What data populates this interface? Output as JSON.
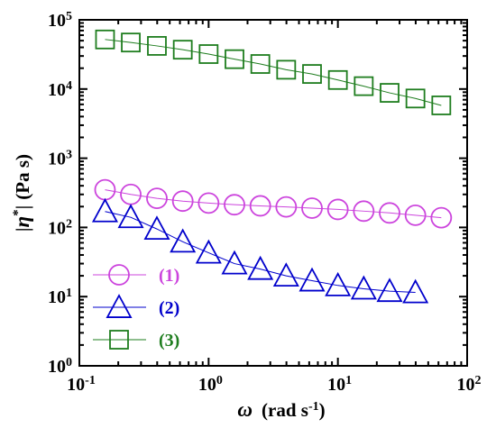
{
  "chart_data": {
    "type": "scatter",
    "x_scale": "log",
    "y_scale": "log",
    "xlim": [
      0.1,
      100
    ],
    "ylim": [
      1,
      100000
    ],
    "grid": false,
    "legend_position": "bottom-left",
    "xlabel": {
      "symbol": "ω",
      "text": "(rad s",
      "sup": "-1",
      "close": ")"
    },
    "ylabel": {
      "open": "|",
      "symbol": "η",
      "sup": "*",
      "close": "|",
      "text": "(Pa s)"
    },
    "x_ticks": [
      {
        "base": "10",
        "exp": "-1",
        "value": 0.1
      },
      {
        "base": "10",
        "exp": "0",
        "value": 1
      },
      {
        "base": "10",
        "exp": "1",
        "value": 10
      },
      {
        "base": "10",
        "exp": "2",
        "value": 100
      }
    ],
    "y_ticks": [
      {
        "base": "10",
        "exp": "0",
        "value": 1
      },
      {
        "base": "10",
        "exp": "1",
        "value": 10
      },
      {
        "base": "10",
        "exp": "2",
        "value": 100
      },
      {
        "base": "10",
        "exp": "3",
        "value": 1000
      },
      {
        "base": "10",
        "exp": "4",
        "value": 10000
      },
      {
        "base": "10",
        "exp": "5",
        "value": 100000
      }
    ],
    "series": [
      {
        "name": "(1)",
        "marker": "circle",
        "color": "#cc44dd",
        "points": [
          [
            0.158,
            350
          ],
          [
            0.25,
            300
          ],
          [
            0.398,
            263
          ],
          [
            0.631,
            240
          ],
          [
            1.0,
            225
          ],
          [
            1.585,
            213
          ],
          [
            2.512,
            205
          ],
          [
            3.981,
            198
          ],
          [
            6.31,
            190
          ],
          [
            10.0,
            182
          ],
          [
            15.85,
            172
          ],
          [
            25.12,
            162
          ],
          [
            39.81,
            150
          ],
          [
            63.1,
            138
          ]
        ]
      },
      {
        "name": "(2)",
        "marker": "triangle",
        "color": "#0000cc",
        "points": [
          [
            0.158,
            170
          ],
          [
            0.25,
            140
          ],
          [
            0.398,
            95
          ],
          [
            0.631,
            62
          ],
          [
            1.0,
            43
          ],
          [
            1.585,
            30
          ],
          [
            2.512,
            25
          ],
          [
            3.981,
            20
          ],
          [
            6.31,
            17
          ],
          [
            10.0,
            14.5
          ],
          [
            15.85,
            13
          ],
          [
            25.12,
            12
          ],
          [
            39.81,
            11.5
          ]
        ]
      },
      {
        "name": "(3)",
        "marker": "square",
        "color": "#1e7d1e",
        "points": [
          [
            0.158,
            52000
          ],
          [
            0.25,
            47000
          ],
          [
            0.398,
            42000
          ],
          [
            0.631,
            37000
          ],
          [
            1.0,
            32000
          ],
          [
            1.585,
            27000
          ],
          [
            2.512,
            23000
          ],
          [
            3.981,
            19000
          ],
          [
            6.31,
            16500
          ],
          [
            10.0,
            13500
          ],
          [
            15.85,
            11000
          ],
          [
            25.12,
            8800
          ],
          [
            39.81,
            7300
          ],
          [
            63.1,
            5800
          ]
        ]
      }
    ]
  }
}
